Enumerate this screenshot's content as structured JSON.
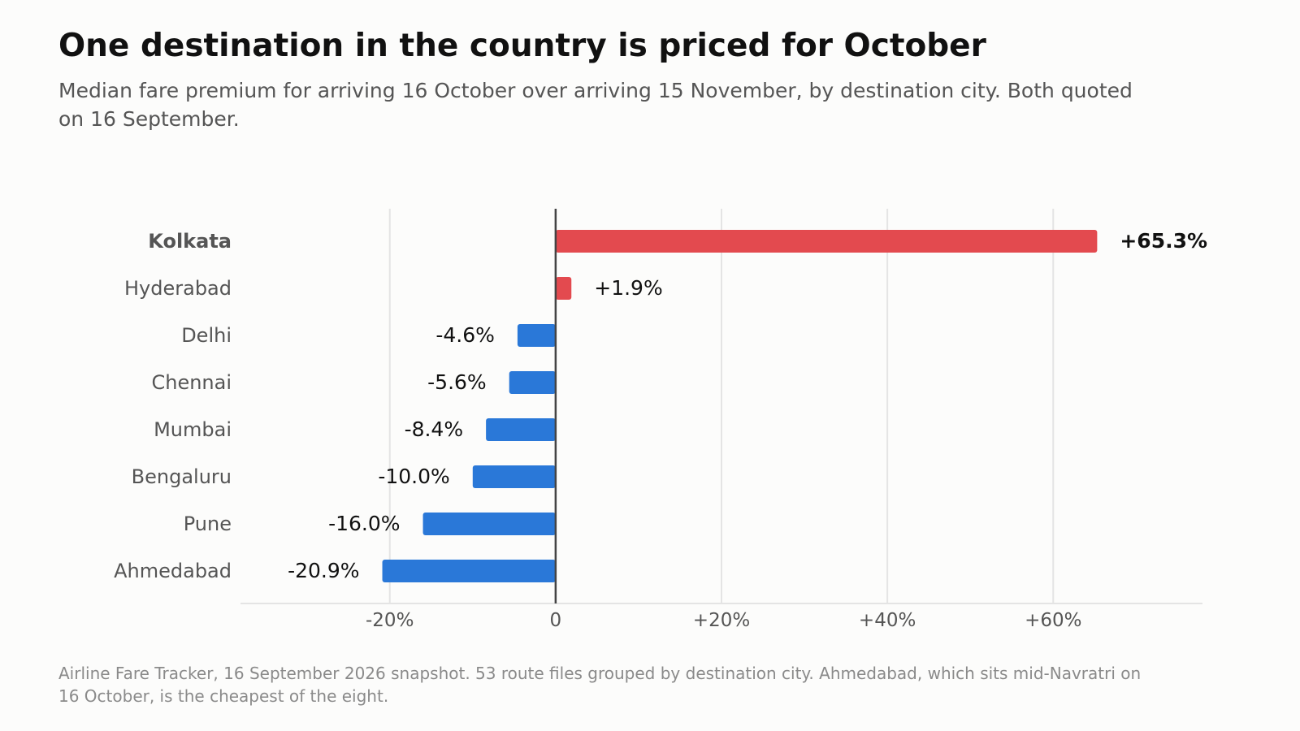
{
  "title": "One destination in the country is priced for October",
  "subtitle": "Median fare premium for arriving 16 October over arriving 15 November, by destination city. Both quoted on 16 September.",
  "footnote": "Airline Fare Tracker, 16 September 2026 snapshot. 53 route files grouped by destination city. Ahmedabad, which sits mid-Navratri on 16 October, is the cheapest of the eight.",
  "colors": {
    "positive": "#e34a4f",
    "negative": "#2a78d8",
    "zero_line": "#444444",
    "grid": "#e4e4e4",
    "axis_text": "#555555",
    "highlight_label": "#555555",
    "value_text": "#111111"
  },
  "chart_data": {
    "type": "bar",
    "orientation": "horizontal",
    "categories": [
      "Kolkata",
      "Hyderabad",
      "Delhi",
      "Chennai",
      "Mumbai",
      "Bengaluru",
      "Pune",
      "Ahmedabad"
    ],
    "values": [
      65.3,
      1.9,
      -4.6,
      -5.6,
      -8.4,
      -10.0,
      -16.0,
      -20.9
    ],
    "value_labels": [
      "+65.3%",
      "+1.9%",
      "-4.6%",
      "-5.6%",
      "-8.4%",
      "-10.0%",
      "-16.0%",
      "-20.9%"
    ],
    "highlighted_category": "Kolkata",
    "xlim": [
      -38,
      78
    ],
    "xticks": [
      -20,
      0,
      20,
      40,
      60
    ],
    "xtick_labels": [
      "-20%",
      "0",
      "+20%",
      "+40%",
      "+60%"
    ],
    "grid": "vertical",
    "legend": "none"
  }
}
